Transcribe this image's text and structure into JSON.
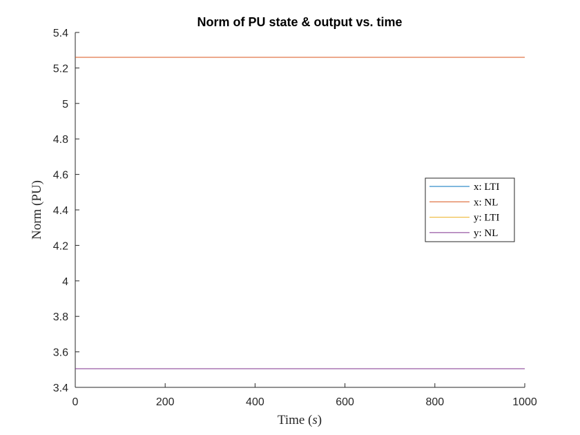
{
  "chart_data": {
    "type": "line",
    "title": "Norm of PU state & output vs. time",
    "xlabel": "Time",
    "xlabel_var": "s",
    "ylabel": "Norm (PU)",
    "xlim": [
      0,
      1000
    ],
    "ylim": [
      3.4,
      5.4
    ],
    "xticks": [
      0,
      200,
      400,
      600,
      800,
      1000
    ],
    "yticks": [
      3.4,
      3.6,
      3.8,
      4,
      4.2,
      4.4,
      4.6,
      4.8,
      5,
      5.2,
      5.4
    ],
    "xtick_labels": [
      "0",
      "200",
      "400",
      "600",
      "800",
      "1000"
    ],
    "ytick_labels": [
      "3.4",
      "3.6",
      "3.8",
      "4",
      "4.2",
      "4.4",
      "4.6",
      "4.8",
      "5",
      "5.2",
      "5.4"
    ],
    "grid": false,
    "legend_position": "right",
    "series": [
      {
        "name": "x: LTI",
        "color": "#0072BD",
        "x": [
          0,
          1000
        ],
        "y": [
          5.26,
          5.26
        ]
      },
      {
        "name": "x: NL",
        "color": "#D95319",
        "x": [
          0,
          1000
        ],
        "y": [
          5.26,
          5.26
        ]
      },
      {
        "name": "y: LTI",
        "color": "#EDB120",
        "x": [
          0,
          1000
        ],
        "y": [
          3.505,
          3.505
        ]
      },
      {
        "name": "y: NL",
        "color": "#7E2F8E",
        "x": [
          0,
          1000
        ],
        "y": [
          3.505,
          3.505
        ]
      }
    ]
  }
}
